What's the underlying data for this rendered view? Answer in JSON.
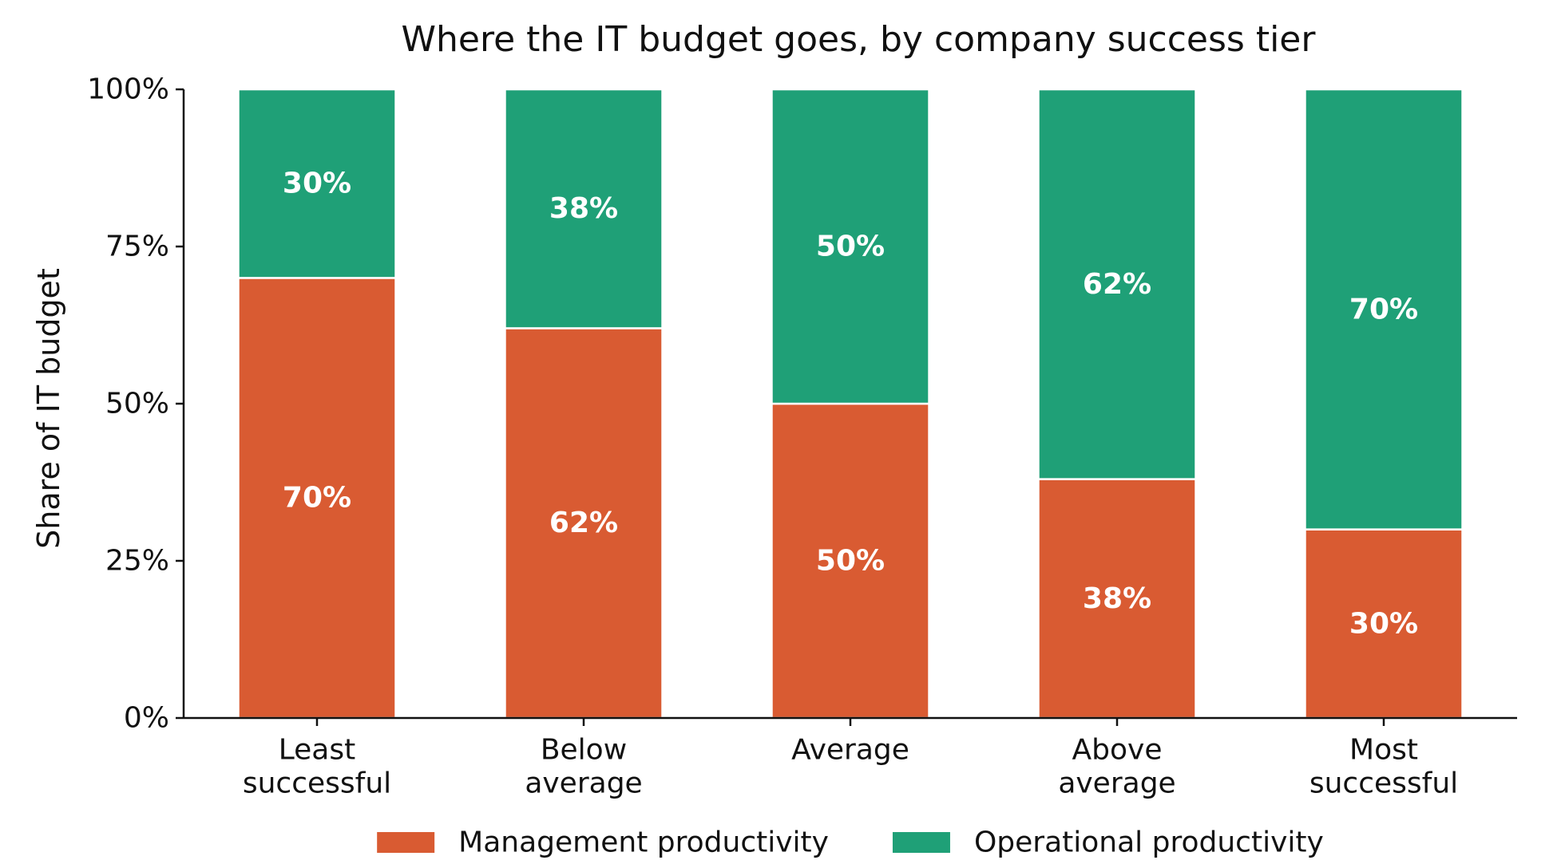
{
  "chart_data": {
    "type": "bar",
    "stacked": true,
    "title": "Where the IT budget goes, by company success tier",
    "xlabel": "",
    "ylabel": "Share of IT budget",
    "ylim": [
      0,
      100
    ],
    "yticks": [
      0,
      25,
      50,
      75,
      100
    ],
    "ytick_labels": [
      "0%",
      "25%",
      "50%",
      "75%",
      "100%"
    ],
    "categories": [
      [
        "Least",
        "successful"
      ],
      [
        "Below",
        "average"
      ],
      [
        "Average"
      ],
      [
        "Above",
        "average"
      ],
      [
        "Most",
        "successful"
      ]
    ],
    "series": [
      {
        "name": "Management productivity",
        "color": "#d95b32",
        "values": [
          70,
          62,
          50,
          38,
          30
        ],
        "labels": [
          "70%",
          "62%",
          "50%",
          "38%",
          "30%"
        ]
      },
      {
        "name": "Operational productivity",
        "color": "#1fa077",
        "values": [
          30,
          38,
          50,
          62,
          70
        ],
        "labels": [
          "30%",
          "38%",
          "50%",
          "62%",
          "70%"
        ]
      }
    ],
    "legend": "bottom-center",
    "grid": false
  }
}
